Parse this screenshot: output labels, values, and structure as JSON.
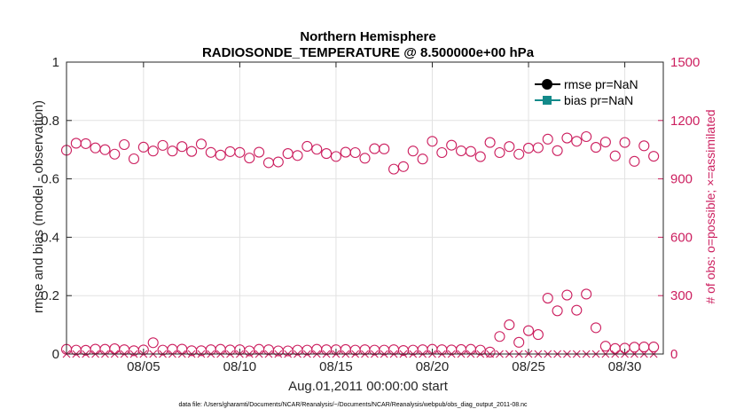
{
  "colors": {
    "obs": "#cc1f5f",
    "rmse": "#000000",
    "bias": "#138a8a",
    "axis": "#262626"
  },
  "chart_data": {
    "type": "line",
    "title": "Northern Hemisphere",
    "subtitle": "RADIOSONDE_TEMPERATURE @ 8.500000e+00 hPa",
    "xlabel": "Aug.01,2011 00:00:00 start",
    "ylabel": "rmse and bias (model - observation)",
    "y2label": "# of obs: o=possible; ×=assimilated",
    "footnote": "data file: /Users/gharamti/Documents/NCAR/Reanalysis/~/Documents/NCAR/Reanalysis/webpub/obs_diag_output_2011-08.nc",
    "xlim": [
      1,
      32
    ],
    "ylim": [
      0,
      1
    ],
    "y2lim": [
      0,
      1500
    ],
    "x_ticks": [
      5,
      10,
      15,
      20,
      25,
      30
    ],
    "x_tick_labels": [
      "08/05",
      "08/10",
      "08/15",
      "08/20",
      "08/25",
      "08/30"
    ],
    "y_ticks": [
      0,
      0.2,
      0.4,
      0.6,
      0.8,
      1
    ],
    "y_tick_labels": [
      "0",
      "0.2",
      "0.4",
      "0.6",
      "0.8",
      "1"
    ],
    "y2_ticks": [
      0,
      300,
      600,
      900,
      1200,
      1500
    ],
    "y2_tick_labels": [
      "0",
      "300",
      "600",
      "900",
      "1200",
      "1500"
    ],
    "legend": [
      {
        "label": "rmse pr=NaN",
        "marker": "circle",
        "color": "#000000"
      },
      {
        "label": "bias pr=NaN",
        "marker": "square",
        "color": "#138a8a"
      }
    ],
    "legend_location": "top-right",
    "grid": true,
    "series": [
      {
        "name": "rmse pr=NaN",
        "axis": "left",
        "values": []
      },
      {
        "name": "bias pr=NaN",
        "axis": "left",
        "values": []
      },
      {
        "name": "obs possible",
        "axis": "right",
        "marker": "o",
        "x": [
          1,
          1.5,
          2,
          2.5,
          3,
          3.5,
          4,
          4.5,
          5,
          5.5,
          6,
          6.5,
          7,
          7.5,
          8,
          8.5,
          9,
          9.5,
          10,
          10.5,
          11,
          11.5,
          12,
          12.5,
          13,
          13.5,
          14,
          14.5,
          15,
          15.5,
          16,
          16.5,
          17,
          17.5,
          18,
          18.5,
          19,
          19.5,
          20,
          20.5,
          21,
          21.5,
          22,
          22.5,
          23,
          23.5,
          24,
          24.5,
          25,
          25.5,
          26,
          26.5,
          27,
          27.5,
          28,
          28.5,
          29,
          29.5,
          30,
          30.5,
          31,
          31.5,
          1,
          1.5,
          2,
          2.5,
          3,
          3.5,
          4,
          4.5,
          5,
          5.5,
          6,
          6.5,
          7,
          7.5,
          8,
          8.5,
          9,
          9.5,
          10,
          10.5,
          11,
          11.5,
          12,
          12.5,
          13,
          13.5,
          14,
          14.5,
          15,
          15.5,
          16,
          16.5,
          17,
          17.5,
          18,
          18.5,
          19,
          19.5,
          20,
          20.5,
          21,
          21.5,
          22,
          22.5,
          23,
          23.5,
          24,
          24.5,
          25,
          25.5,
          26,
          26.5,
          27,
          27.5,
          28,
          28.5,
          29,
          29.5,
          30,
          30.5,
          31,
          31.5
        ],
        "y": [
          1047,
          1083,
          1081,
          1059,
          1050,
          1027,
          1076,
          1003,
          1063,
          1043,
          1072,
          1043,
          1066,
          1041,
          1079,
          1036,
          1022,
          1040,
          1036,
          1007,
          1037,
          983,
          987,
          1030,
          1020,
          1067,
          1052,
          1030,
          1015,
          1037,
          1035,
          1006,
          1055,
          1054,
          950,
          963,
          1043,
          1002,
          1093,
          1035,
          1073,
          1044,
          1041,
          1014,
          1087,
          1035,
          1066,
          1027,
          1058,
          1060,
          1104,
          1045,
          1110,
          1093,
          1117,
          1062,
          1089,
          1018,
          1087,
          990,
          1070,
          1016,
          24,
          20,
          19,
          25,
          24,
          27,
          22,
          17,
          21,
          58,
          20,
          24,
          25,
          17,
          17,
          22,
          24,
          21,
          22,
          16,
          24,
          22,
          16,
          16,
          20,
          20,
          24,
          22,
          22,
          23,
          20,
          22,
          20,
          20,
          22,
          18,
          20,
          22,
          24,
          22,
          21,
          23,
          24,
          20,
          10,
          90,
          150,
          60,
          120,
          100,
          287,
          222,
          303,
          225,
          308,
          135,
          40,
          28,
          30,
          35,
          36,
          36
        ]
      },
      {
        "name": "obs assimilated",
        "axis": "right",
        "marker": "x",
        "x": [
          1,
          1.5,
          2,
          2.5,
          3,
          3.5,
          4,
          4.5,
          5,
          5.5,
          6,
          6.5,
          7,
          7.5,
          8,
          8.5,
          9,
          9.5,
          10,
          10.5,
          11,
          11.5,
          12,
          12.5,
          13,
          13.5,
          14,
          14.5,
          15,
          15.5,
          16,
          16.5,
          17,
          17.5,
          18,
          18.5,
          19,
          19.5,
          20,
          20.5,
          21,
          21.5,
          22,
          22.5,
          23,
          23.5,
          24,
          24.5,
          25,
          25.5,
          26,
          26.5,
          27,
          27.5,
          28,
          28.5,
          29,
          29.5,
          30,
          30.5,
          31,
          31.5
        ],
        "y": [
          0,
          0,
          0,
          0,
          0,
          0,
          0,
          0,
          0,
          0,
          0,
          0,
          0,
          0,
          0,
          0,
          0,
          0,
          0,
          0,
          0,
          0,
          0,
          0,
          0,
          0,
          0,
          0,
          0,
          0,
          0,
          0,
          0,
          0,
          0,
          0,
          0,
          0,
          0,
          0,
          0,
          0,
          0,
          0,
          0,
          0,
          0,
          0,
          0,
          0,
          0,
          0,
          0,
          0,
          0,
          0,
          0,
          0,
          0,
          0,
          0,
          0
        ]
      }
    ]
  }
}
